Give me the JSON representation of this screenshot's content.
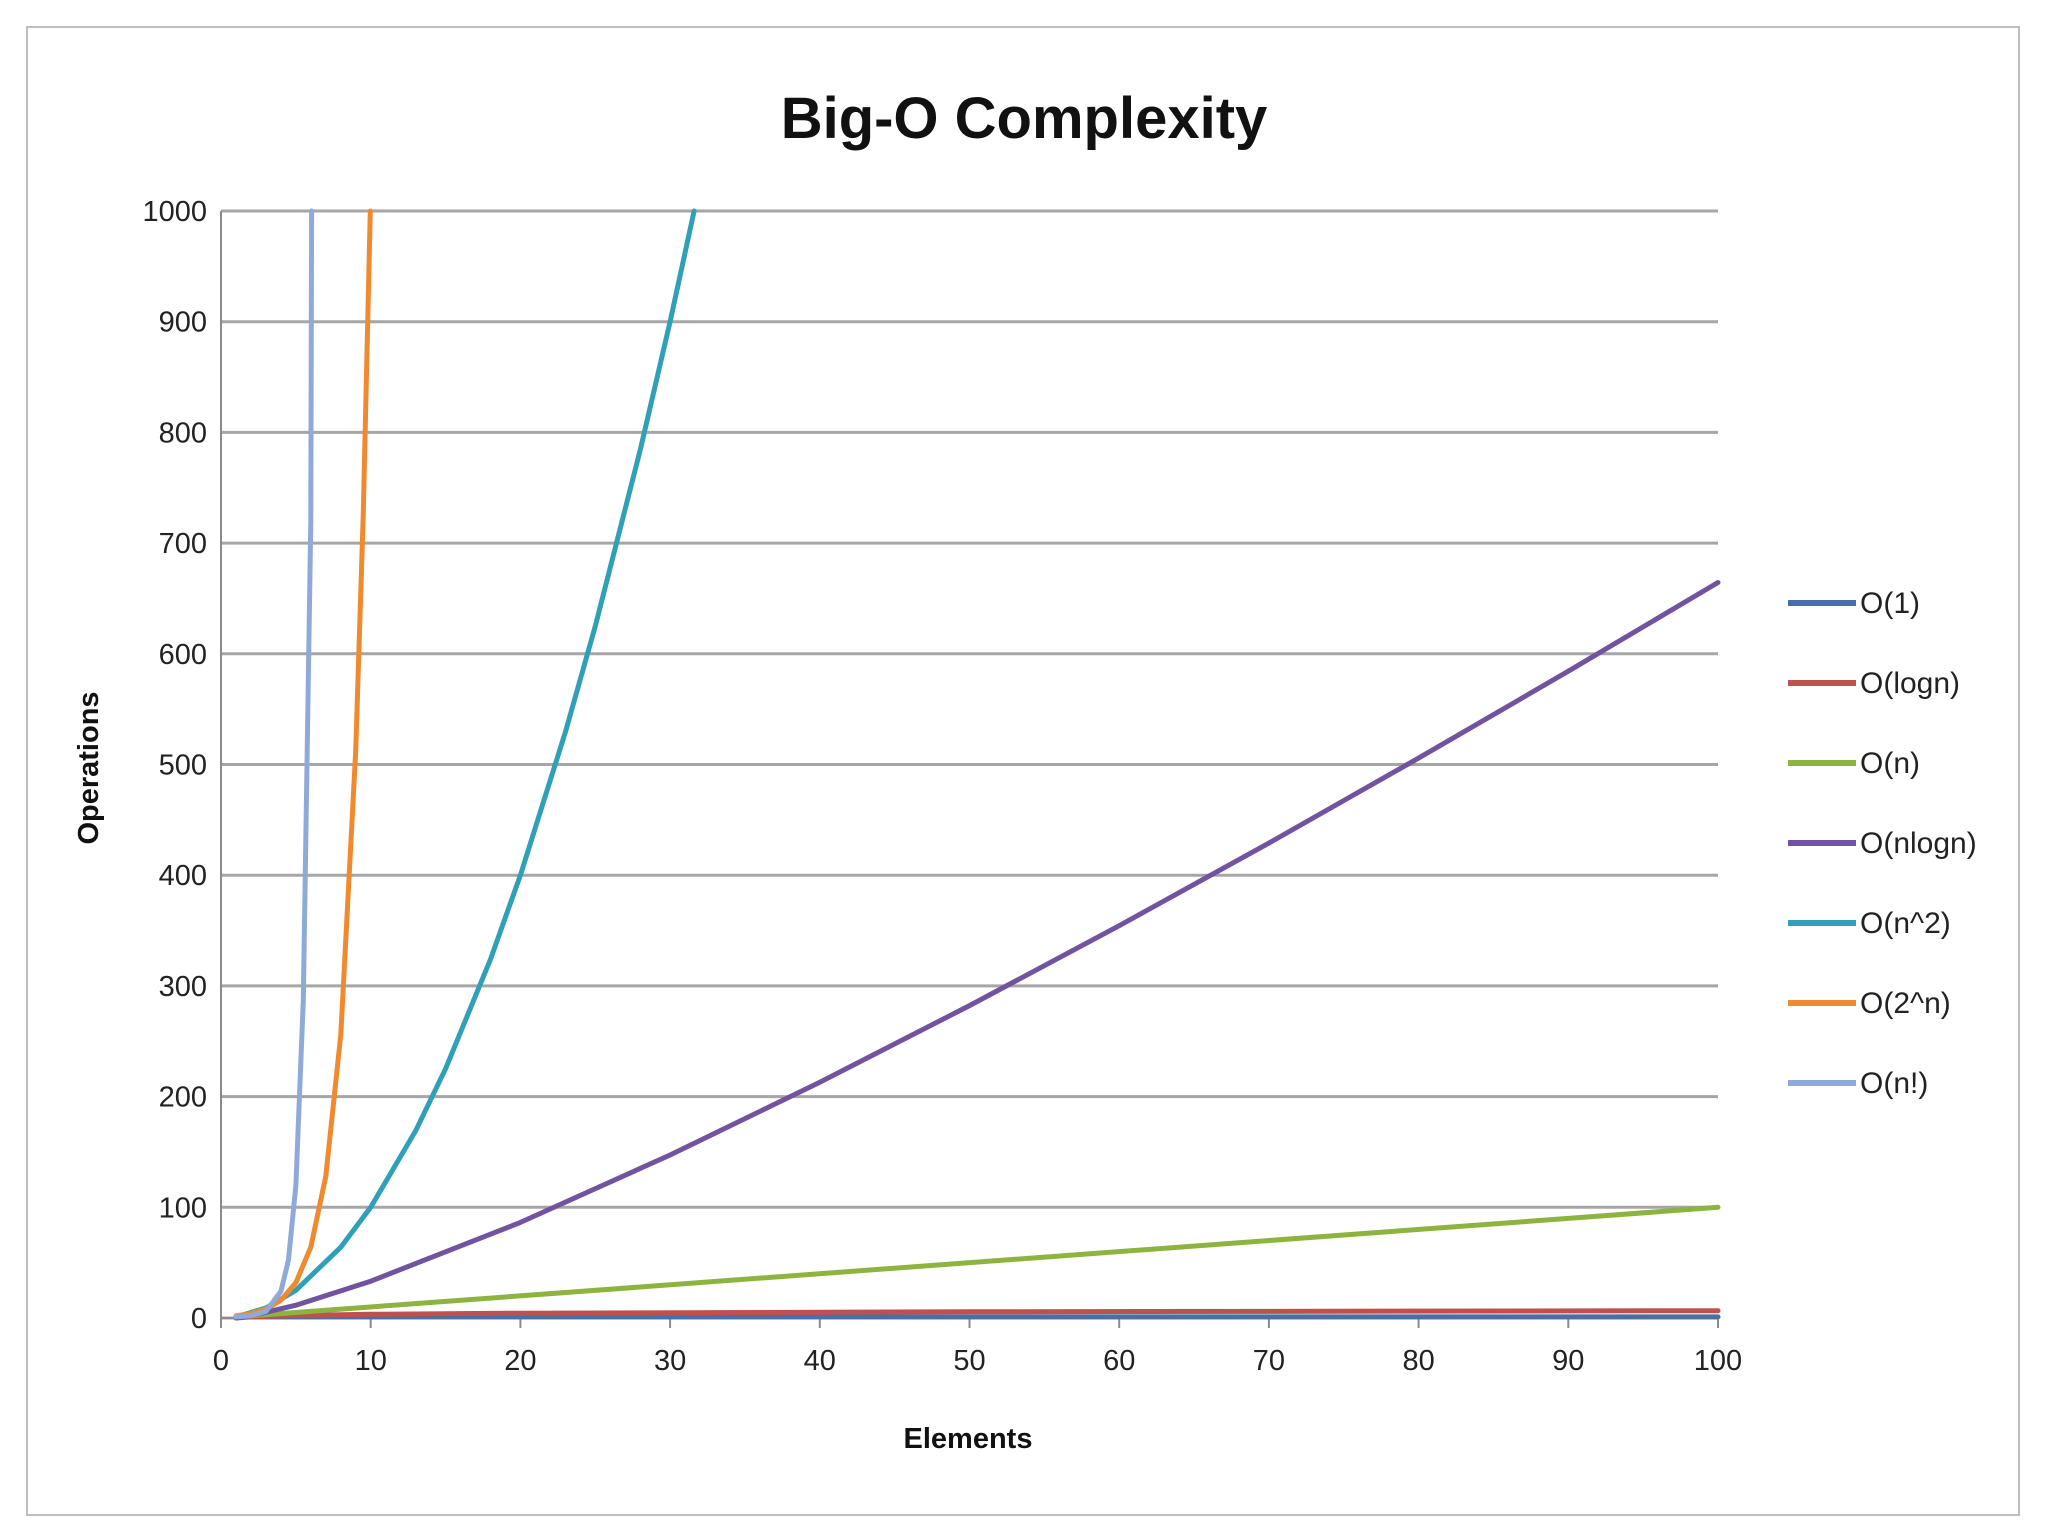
{
  "chart_data": {
    "type": "line",
    "title": "Big-O Complexity",
    "xlabel": "Elements",
    "ylabel": "Operations",
    "xlim": [
      0,
      100
    ],
    "ylim": [
      0,
      1000
    ],
    "x_ticks": [
      "0",
      "10",
      "20",
      "30",
      "40",
      "50",
      "60",
      "70",
      "80",
      "90",
      "100"
    ],
    "y_ticks": [
      "0",
      "100",
      "200",
      "300",
      "400",
      "500",
      "600",
      "700",
      "800",
      "900",
      "1000"
    ],
    "grid": "horizontal",
    "legend_position": "right",
    "series": [
      {
        "name": "O(1)",
        "color": "#4a6fa5",
        "x": [
          1,
          100
        ],
        "y": [
          1,
          1
        ]
      },
      {
        "name": "O(logn)",
        "color": "#c0504d",
        "x": [
          1,
          2,
          5,
          10,
          20,
          50,
          100
        ],
        "y": [
          0,
          1,
          2.3,
          3.3,
          4.3,
          5.6,
          6.6
        ]
      },
      {
        "name": "O(n)",
        "color": "#8cb43f",
        "x": [
          1,
          100
        ],
        "y": [
          1,
          100
        ]
      },
      {
        "name": "O(nlogn)",
        "color": "#7054a0",
        "x": [
          1,
          2,
          5,
          10,
          20,
          30,
          40,
          50,
          60,
          70,
          80,
          90,
          100
        ],
        "y": [
          0,
          2,
          11.6,
          33.2,
          86.4,
          147.2,
          212.9,
          282.2,
          354.4,
          429,
          505.8,
          584.3,
          664.4
        ]
      },
      {
        "name": "O(n^2)",
        "color": "#2fa0b8",
        "x": [
          1,
          3,
          5,
          8,
          10,
          13,
          15,
          18,
          20,
          23,
          25,
          28,
          30,
          31.6
        ],
        "y": [
          1,
          9,
          25,
          64,
          100,
          169,
          225,
          324,
          400,
          529,
          625,
          784,
          900,
          1000
        ]
      },
      {
        "name": "O(2^n)",
        "color": "#f08a2e",
        "x": [
          1,
          2,
          3,
          4,
          5,
          6,
          7,
          8,
          9,
          9.5,
          9.97
        ],
        "y": [
          2,
          4,
          8,
          16,
          32,
          64,
          128,
          256,
          512,
          724,
          1000
        ]
      },
      {
        "name": "O(n!)",
        "color": "#8faad8",
        "x": [
          1,
          2,
          3,
          4,
          4.5,
          5,
          5.5,
          6,
          6.05
        ],
        "y": [
          1,
          2,
          6,
          24,
          52,
          120,
          287,
          720,
          1000
        ]
      }
    ]
  }
}
